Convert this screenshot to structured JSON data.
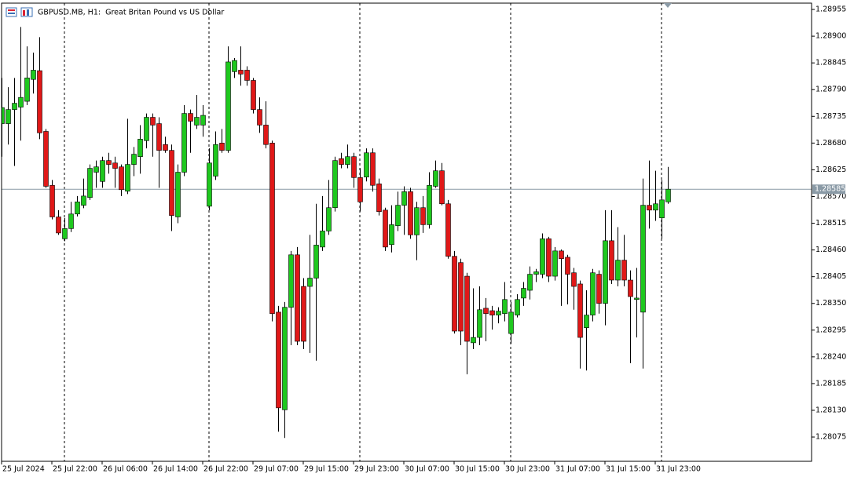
{
  "chart_data": {
    "type": "candlestick",
    "title": "GBPUSD.MB, H1:  Great Britan Pound vs US Dollar",
    "up_color": "#1ec81e",
    "down_color": "#e01818",
    "wick_color": "#000000",
    "current_price": 1.28585,
    "current_price_color": "#8a9aa6",
    "ylim": [
      1.28025,
      1.28968
    ],
    "yticks": [
      1.28955,
      {
        "value": 1.289,
        "label": "1.28900"
      },
      1.28845,
      {
        "value": 1.2879,
        "label": "1.28790"
      },
      1.28735,
      {
        "value": 1.2868,
        "label": "1.28680"
      },
      1.28625,
      {
        "value": 1.2857,
        "label": "1.28570"
      },
      1.28515,
      {
        "value": 1.2846,
        "label": "1.28460"
      },
      1.28405,
      {
        "value": 1.2835,
        "label": "1.28350"
      },
      1.28295,
      {
        "value": 1.2824,
        "label": "1.28240"
      },
      1.28185,
      {
        "value": 1.2813,
        "label": "1.28130"
      },
      1.28075
    ],
    "categories": [
      "25 Jul 2024",
      null,
      null,
      null,
      null,
      null,
      null,
      null,
      "25 Jul 22:00",
      null,
      null,
      null,
      null,
      null,
      null,
      null,
      "26 Jul 06:00",
      null,
      null,
      null,
      null,
      null,
      null,
      null,
      "26 Jul 14:00",
      null,
      null,
      null,
      null,
      null,
      null,
      null,
      "26 Jul 22:00",
      null,
      null,
      null,
      null,
      null,
      null,
      null,
      "29 Jul 07:00",
      null,
      null,
      null,
      null,
      null,
      null,
      null,
      "29 Jul 15:00",
      null,
      null,
      null,
      null,
      null,
      null,
      null,
      "29 Jul 23:00",
      null,
      null,
      null,
      null,
      null,
      null,
      null,
      "30 Jul 07:00",
      null,
      null,
      null,
      null,
      null,
      null,
      null,
      "30 Jul 15:00",
      null,
      null,
      null,
      null,
      null,
      null,
      null,
      "30 Jul 23:00",
      null,
      null,
      null,
      null,
      null,
      null,
      null,
      "31 Jul 07:00",
      null,
      null,
      null,
      null,
      null,
      null,
      null,
      "31 Jul 15:00",
      null,
      null,
      null,
      null,
      null,
      null,
      null,
      "31 Jul 23:00",
      null,
      null
    ],
    "open": [
      1.2872,
      1.2872,
      1.28749,
      1.28754,
      1.28766,
      1.28811,
      1.28829,
      1.28704,
      1.28593,
      1.28528,
      1.28483,
      1.28504,
      1.28534,
      1.28552,
      1.28568,
      1.2862,
      1.28601,
      1.28644,
      1.28639,
      1.28631,
      1.28581,
      1.28636,
      1.28652,
      1.28685,
      1.28733,
      1.2872,
      1.28677,
      1.28665,
      1.28528,
      1.2862,
      1.28741,
      1.28717,
      1.28717,
      1.2855,
      1.28612,
      1.2868,
      1.28665,
      1.28827,
      1.2883,
      1.2883,
      1.28809,
      1.28749,
      1.28717,
      1.2868,
      1.28332,
      1.28131,
      1.28342,
      1.2845,
      1.28385,
      1.28385,
      1.28402,
      1.28466,
      1.28499,
      1.28547,
      1.28648,
      1.28636,
      1.28652,
      1.28609,
      1.2861,
      1.2866,
      1.28596,
      1.28542,
      1.28471,
      1.2851,
      1.28552,
      1.2858,
      1.28491,
      1.28547,
      1.28512,
      1.28591,
      1.28623,
      1.28555,
      1.28447,
      1.28434,
      1.28406,
      1.28269,
      1.2828,
      1.2834,
      1.28335,
      1.28326,
      1.28329,
      1.28288,
      1.28326,
      1.28361,
      1.28377,
      1.2841,
      1.2841,
      1.28483,
      1.28406,
      1.28458,
      1.28445,
      1.28413,
      1.2839,
      1.283,
      1.28326,
      1.2841,
      1.2835,
      1.28479,
      1.28398,
      1.28439,
      1.28398,
      1.28358,
      1.28332,
      1.28552,
      1.28542,
      1.28526,
      1.28559
    ],
    "high": [
      1.28814,
      1.28795,
      1.28814,
      1.28919,
      1.28879,
      1.28866,
      1.28898,
      1.28709,
      1.28604,
      1.28542,
      1.28526,
      1.28559,
      1.28571,
      1.28607,
      1.28636,
      1.28644,
      1.28652,
      1.2866,
      1.28652,
      1.28636,
      1.2873,
      1.28672,
      1.28717,
      1.28741,
      1.28741,
      1.28733,
      1.28693,
      1.28677,
      1.28636,
      1.28758,
      1.28749,
      1.28779,
      1.28758,
      1.28669,
      1.28704,
      1.28709,
      1.28879,
      1.28855,
      1.28879,
      1.28838,
      1.28814,
      1.28774,
      1.28766,
      1.28685,
      1.28345,
      1.28353,
      1.28458,
      1.28466,
      1.28402,
      1.28491,
      1.28555,
      1.28571,
      1.28604,
      1.28652,
      1.2866,
      1.28677,
      1.2866,
      1.28628,
      1.28669,
      1.28669,
      1.28607,
      1.28547,
      1.28552,
      1.2858,
      1.28591,
      1.28588,
      1.28559,
      1.28571,
      1.2862,
      1.28644,
      1.28639,
      1.28563,
      1.28458,
      1.28442,
      1.28413,
      1.28381,
      1.28385,
      1.28361,
      1.28345,
      1.28342,
      1.28394,
      1.28353,
      1.28369,
      1.28394,
      1.28426,
      1.28421,
      1.28494,
      1.28487,
      1.28466,
      1.28461,
      1.2845,
      1.28423,
      1.28397,
      1.28377,
      1.28421,
      1.28418,
      1.28542,
      1.28542,
      1.28507,
      1.28491,
      1.28418,
      1.28423,
      1.28607,
      1.28644,
      1.28623,
      1.28604,
      1.28631
    ],
    "low": [
      1.28652,
      1.28677,
      1.28633,
      1.28685,
      1.28758,
      1.28782,
      1.28688,
      1.28588,
      1.28523,
      1.28491,
      1.28478,
      1.28497,
      1.28529,
      1.28546,
      1.28563,
      1.28588,
      1.28588,
      1.28617,
      1.28588,
      1.28571,
      1.28575,
      1.28612,
      1.28617,
      1.28669,
      1.28652,
      1.28588,
      1.2866,
      1.28499,
      1.28515,
      1.28612,
      1.2866,
      1.28709,
      1.28693,
      1.28542,
      1.28604,
      1.2866,
      1.2866,
      1.28814,
      1.28798,
      1.28798,
      1.28741,
      1.28701,
      1.28669,
      1.28313,
      1.28086,
      1.28073,
      1.28264,
      1.28264,
      1.28256,
      1.28248,
      1.28232,
      1.28458,
      1.28491,
      1.28539,
      1.28628,
      1.28628,
      1.28588,
      1.28539,
      1.28601,
      1.2858,
      1.28531,
      1.28458,
      1.28455,
      1.28499,
      1.28491,
      1.28483,
      1.28439,
      1.28495,
      1.28504,
      1.28588,
      1.28552,
      1.28442,
      1.28288,
      1.28264,
      1.28204,
      1.28256,
      1.28264,
      1.28272,
      1.28296,
      1.28309,
      1.28313,
      1.28267,
      1.28321,
      1.28345,
      1.28358,
      1.28394,
      1.28402,
      1.28394,
      1.28397,
      1.28345,
      1.28348,
      1.28337,
      1.28216,
      1.28212,
      1.28313,
      1.28329,
      1.28305,
      1.2839,
      1.28385,
      1.28385,
      1.28227,
      1.2828,
      1.28216,
      1.28504,
      1.2852,
      1.28483,
      1.28555
    ],
    "close": [
      1.28753,
      1.28749,
      1.28762,
      1.28774,
      1.28814,
      1.2883,
      1.28701,
      1.28591,
      1.28528,
      1.28495,
      1.28504,
      1.28534,
      1.28559,
      1.28571,
      1.28628,
      1.28631,
      1.28644,
      1.28636,
      1.28628,
      1.28584,
      1.28636,
      1.28657,
      1.28688,
      1.28733,
      1.28717,
      1.28665,
      1.28665,
      1.28531,
      1.2862,
      1.28741,
      1.28725,
      1.28733,
      1.28737,
      1.28639,
      1.28677,
      1.28665,
      1.28847,
      1.2885,
      1.28822,
      1.28809,
      1.28749,
      1.28717,
      1.28677,
      1.28329,
      1.28135,
      1.28342,
      1.2845,
      1.28272,
      1.28272,
      1.28402,
      1.2847,
      1.28499,
      1.28547,
      1.28644,
      1.28636,
      1.28652,
      1.28609,
      1.28559,
      1.2866,
      1.28593,
      1.28539,
      1.28466,
      1.28512,
      1.28552,
      1.2858,
      1.28491,
      1.28547,
      1.28512,
      1.28593,
      1.28623,
      1.28555,
      1.28447,
      1.28293,
      1.28293,
      1.28272,
      1.2828,
      1.28337,
      1.28329,
      1.28326,
      1.28334,
      1.28358,
      1.28332,
      1.28358,
      1.28381,
      1.2841,
      1.28415,
      1.28483,
      1.28406,
      1.28458,
      1.28442,
      1.2841,
      1.28385,
      1.2828,
      1.28326,
      1.28413,
      1.2835,
      1.28479,
      1.28398,
      1.28439,
      1.28398,
      1.28364,
      1.28361,
      1.28552,
      1.28542,
      1.28555,
      1.28563,
      1.28585
    ]
  }
}
